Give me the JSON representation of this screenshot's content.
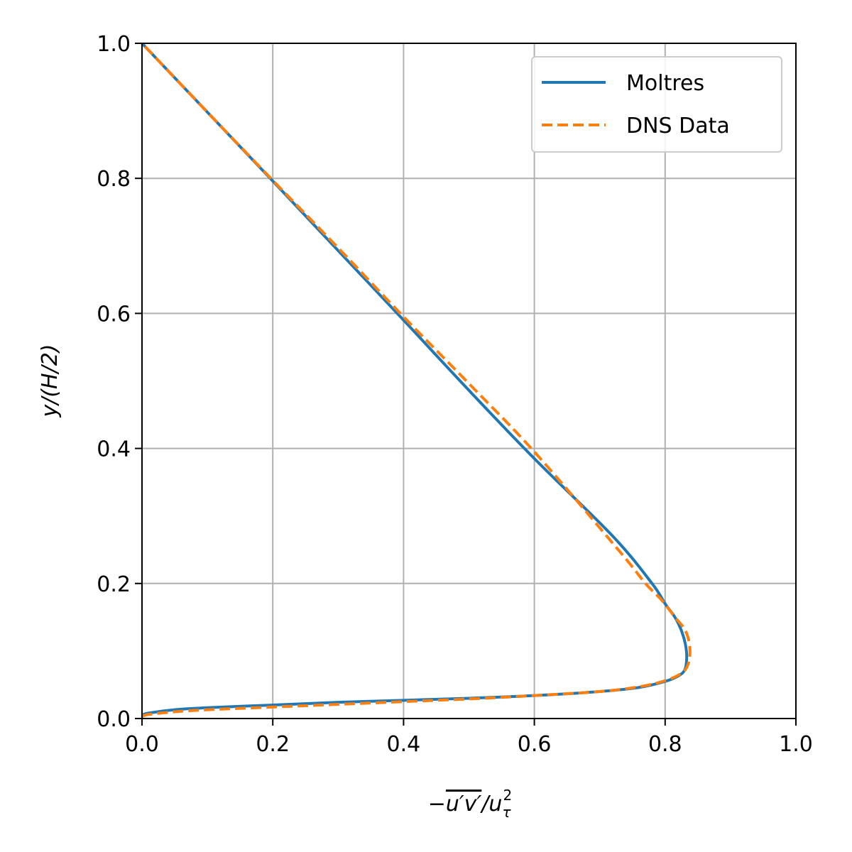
{
  "chart_data": {
    "type": "line",
    "xlabel": {
      "prefix": "−",
      "overlined": "u′v′",
      "slash": "/",
      "base": "u",
      "subscript": "τ",
      "superscript": "2"
    },
    "ylabel": "y/(H/2)",
    "xlim": [
      0.0,
      1.0
    ],
    "ylim": [
      0.0,
      1.0
    ],
    "xticks": [
      "0.0",
      "0.2",
      "0.4",
      "0.6",
      "0.8",
      "1.0"
    ],
    "yticks": [
      "0.0",
      "0.2",
      "0.4",
      "0.6",
      "0.8",
      "1.0"
    ],
    "grid": true,
    "legend_position": "upper right",
    "series": [
      {
        "name": "Moltres",
        "color": "#1f77b4",
        "style": "solid",
        "x": [
          0.0,
          0.01,
          0.05,
          0.1,
          0.2,
          0.3,
          0.4,
          0.5,
          0.6,
          0.7,
          0.76,
          0.8,
          0.82,
          0.83,
          0.833,
          0.831,
          0.825,
          0.815,
          0.8,
          0.78,
          0.72,
          0.6,
          0.5,
          0.4,
          0.3,
          0.2,
          0.1,
          0.0
        ],
        "y": [
          0.005,
          0.008,
          0.013,
          0.016,
          0.02,
          0.024,
          0.027,
          0.03,
          0.034,
          0.04,
          0.046,
          0.055,
          0.063,
          0.072,
          0.09,
          0.11,
          0.13,
          0.15,
          0.17,
          0.2,
          0.27,
          0.385,
          0.486,
          0.59,
          0.693,
          0.796,
          0.898,
          1.0
        ]
      },
      {
        "name": "DNS Data",
        "color": "#ff7f0e",
        "style": "dashed",
        "x": [
          0.0,
          0.01,
          0.05,
          0.1,
          0.2,
          0.3,
          0.4,
          0.5,
          0.6,
          0.7,
          0.76,
          0.8,
          0.825,
          0.835,
          0.838,
          0.835,
          0.828,
          0.815,
          0.795,
          0.77,
          0.73,
          0.6,
          0.5,
          0.4,
          0.3,
          0.2,
          0.1,
          0.0
        ],
        "y": [
          0.003,
          0.006,
          0.01,
          0.013,
          0.017,
          0.021,
          0.025,
          0.029,
          0.034,
          0.04,
          0.047,
          0.056,
          0.067,
          0.08,
          0.1,
          0.12,
          0.135,
          0.15,
          0.175,
          0.2,
          0.248,
          0.395,
          0.496,
          0.595,
          0.697,
          0.797,
          0.898,
          1.0
        ]
      }
    ]
  }
}
